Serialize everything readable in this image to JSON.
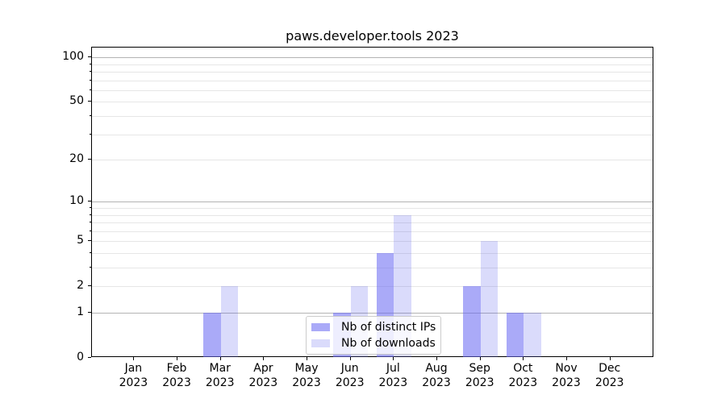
{
  "figure": {
    "title": "paws.developer.tools 2023"
  },
  "chart_data": {
    "type": "bar",
    "title": "paws.developer.tools 2023",
    "categories": [
      "Jan 2023",
      "Feb 2023",
      "Mar 2023",
      "Apr 2023",
      "May 2023",
      "Jun 2023",
      "Jul 2023",
      "Aug 2023",
      "Sep 2023",
      "Oct 2023",
      "Nov 2023",
      "Dec 2023"
    ],
    "series": [
      {
        "name": "Nb of distinct IPs",
        "values": [
          0,
          0,
          1,
          0,
          0,
          1,
          4,
          0,
          2,
          1,
          0,
          0
        ],
        "fill": "rgba(100,101,242,0.55)",
        "hex_on_white": "#aaaaf8"
      },
      {
        "name": "Nb of downloads",
        "values": [
          0,
          0,
          2,
          0,
          0,
          2,
          8,
          0,
          5,
          1,
          0,
          0
        ],
        "fill": "rgba(88,92,235,0.22)",
        "hex_on_white": "#dadbfb"
      }
    ],
    "xlabel": "",
    "ylabel": "",
    "yscale": "log1p",
    "ylim": [
      0,
      115
    ],
    "yticks": [
      0,
      1,
      2,
      5,
      10,
      20,
      50,
      100
    ],
    "ytick_labels": [
      "0",
      "1",
      "2",
      "5",
      "10",
      "20",
      "50",
      "100"
    ],
    "ygrid_major": [
      1,
      10,
      100
    ],
    "ygrid_minor": [
      2,
      3,
      4,
      5,
      6,
      7,
      8,
      9,
      20,
      30,
      40,
      50,
      60,
      70,
      80,
      90
    ],
    "grid": "horizontal",
    "legend_position": "lower center"
  },
  "style": {
    "grid_major_color": "#b3b3b3",
    "grid_minor_color": "#e6e6e6",
    "axis_color": "#000000",
    "text_color": "#000000",
    "legend_border_color": "#cccccc",
    "legend_bg": "rgba(255,255,255,0.8)"
  }
}
